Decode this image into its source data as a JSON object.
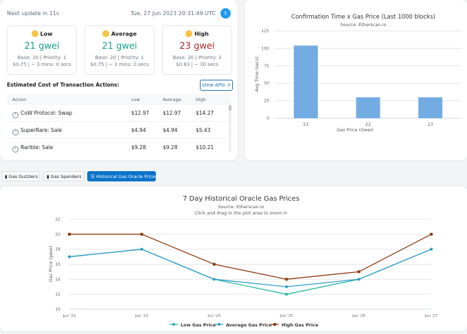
{
  "header": {
    "next_update": "Next update in 11s",
    "timestamp": "Tue, 27 Jun 2023 20:31:49 UTC",
    "share_icon": "twitter-icon"
  },
  "gas": [
    {
      "label": "Low",
      "price": "21 gwei",
      "base": "Base: 20 | Priority: 1",
      "cost": "$0.75 | ~ 3 mins: 0 secs",
      "color": "#1aa090"
    },
    {
      "label": "Average",
      "price": "21 gwei",
      "base": "Base: 20 | Priority: 1",
      "cost": "$0.75 | ~ 3 mins: 0 secs",
      "color": "#1aa090"
    },
    {
      "label": "High",
      "price": "23 gwei",
      "base": "Base: 20 | Priority: 3",
      "cost": "$0.83 | ~ 30 secs",
      "color": "#b02a2a"
    }
  ],
  "estimate": {
    "title": "Estimated Cost of Transaction Actions:",
    "view_apis": "View APIs ↗",
    "columns": [
      "Action",
      "Low",
      "Average",
      "High"
    ],
    "rows": [
      {
        "action": "CoW Protocol: Swap",
        "low": "$12.97",
        "avg": "$12.97",
        "high": "$14.27"
      },
      {
        "action": "SuperRare: Sale",
        "low": "$4.94",
        "avg": "$4.94",
        "high": "$5.43"
      },
      {
        "action": "Rarible: Sale",
        "low": "$9.28",
        "avg": "$9.28",
        "high": "$10.21"
      }
    ]
  },
  "tabs": [
    {
      "label": "Gas Guzzlers",
      "icon": "flame-icon"
    },
    {
      "label": "Gas Spenders",
      "icon": "fuel-icon"
    },
    {
      "label": "Historical Gas Oracle Prices",
      "icon": "list-icon"
    }
  ],
  "colors": {
    "accent": "#0b73c9",
    "bar": "#73abe3",
    "low": "#26b5a3",
    "average": "#2c9dc7",
    "high": "#8b3a12"
  },
  "chart_data": [
    {
      "type": "bar",
      "title": "Confirmation Time x Gas Price (Last 1000 blocks)",
      "subtitle": "Source: Etherscan.io",
      "categories": [
        "21",
        "22",
        "23"
      ],
      "values": [
        104,
        30,
        30
      ],
      "xlabel": "Gas Price (Gwei)",
      "ylabel": "Avg Time (secs)",
      "ylim": [
        0,
        125
      ],
      "yticks": [
        0,
        25,
        50,
        75,
        100,
        125
      ]
    },
    {
      "type": "line",
      "title": "7 Day Historical Oracle Gas Prices",
      "subtitle": "Source: Etherscan.io",
      "subtitle2": "Click and drag in the plot area to zoom in",
      "categories": [
        "Jun '22",
        "Jun '23",
        "Jun '24",
        "Jun '25",
        "Jun '26",
        "Jun '27"
      ],
      "ylabel": "Gas Price (gwei)",
      "ylim": [
        10,
        22
      ],
      "yticks": [
        10,
        12,
        14,
        16,
        18,
        20,
        22
      ],
      "series": [
        {
          "name": "Low Gas Price",
          "values": [
            17,
            18,
            14,
            12,
            14,
            18
          ]
        },
        {
          "name": "Average Gas Price",
          "values": [
            17,
            18,
            14,
            13,
            14,
            18
          ]
        },
        {
          "name": "High Gas Price",
          "values": [
            20,
            20,
            16,
            14,
            15,
            20
          ]
        }
      ]
    }
  ]
}
